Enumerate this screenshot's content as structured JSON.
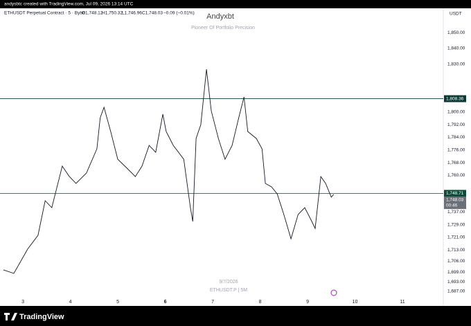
{
  "header": {
    "text": "andysbtc created with TradingView.com, Jul 09, 2026 13:14 UTC"
  },
  "footer": {
    "brand": "TradingView"
  },
  "chart_data": {
    "type": "line",
    "title": "Andyxbt",
    "subtitle": "Pioneer Of Portfolio Precision",
    "symbol": "ETHUSDT Perpetual Contract · 5 · Bybit",
    "ohlc": {
      "values": [
        1748.12,
        1750.32,
        1746.96,
        1748.03
      ],
      "value_labels": [
        "O1,748.12",
        "H1,750.32",
        "L1,746.96",
        "C1,748.03"
      ]
    },
    "change": "−0.09 (−0.01%)",
    "watermark_date": "9/7/2026",
    "watermark_symbol": "ETHUSDT.P | 5M",
    "currency": "USDT",
    "color": "#131722",
    "grid": false,
    "x": [
      2.59,
      2.81,
      3.1,
      3.32,
      3.47,
      3.61,
      3.83,
      3.98,
      4.12,
      4.34,
      4.56,
      4.63,
      4.71,
      4.85,
      5.0,
      5.15,
      5.37,
      5.51,
      5.66,
      5.8,
      5.95,
      6.02,
      6.17,
      6.39,
      6.53,
      6.58,
      6.65,
      6.75,
      6.87,
      6.97,
      7.12,
      7.26,
      7.41,
      7.55,
      7.66,
      7.74,
      7.92,
      8.04,
      8.11,
      8.24,
      8.36,
      8.5,
      8.65,
      8.8,
      8.94,
      9.09,
      9.16,
      9.28,
      9.38,
      9.5,
      9.55
    ],
    "values": [
      1700.5,
      1698.3,
      1713.6,
      1722.3,
      1744.1,
      1739.7,
      1765.9,
      1759.3,
      1755.0,
      1761.5,
      1776.8,
      1796.4,
      1802.9,
      1787.7,
      1770.2,
      1765.9,
      1759.3,
      1765.9,
      1778.9,
      1774.6,
      1798.6,
      1787.7,
      1778.9,
      1770.2,
      1739.7,
      1731.0,
      1783.3,
      1792.0,
      1826.9,
      1800.7,
      1783.3,
      1770.2,
      1778.9,
      1796.4,
      1809.5,
      1787.7,
      1783.3,
      1776.8,
      1755.0,
      1752.8,
      1748.4,
      1735.4,
      1720.1,
      1735.4,
      1739.7,
      1731.0,
      1726.6,
      1759.3,
      1755.0,
      1746.3,
      1748.03
    ],
    "xlim": [
      2.518,
      11.86
    ],
    "xticks": [
      3,
      4,
      5,
      6,
      7,
      8,
      9,
      10,
      11
    ],
    "ylim": [
      1677.8,
      1865.3
    ],
    "yticks": [
      {
        "value": 1850,
        "label": "1,850.00"
      },
      {
        "value": 1840,
        "label": "1,840.00"
      },
      {
        "value": 1830,
        "label": "1,830.00"
      },
      {
        "value": 1800,
        "label": "1,800.00"
      },
      {
        "value": 1792,
        "label": "1,792.00"
      },
      {
        "value": 1784,
        "label": "1,784.00"
      },
      {
        "value": 1776,
        "label": "1,776.00"
      },
      {
        "value": 1768,
        "label": "1,768.00"
      },
      {
        "value": 1760,
        "label": "1,760.00"
      },
      {
        "value": 1737,
        "label": "1,737.00"
      },
      {
        "value": 1729,
        "label": "1,729.00"
      },
      {
        "value": 1721,
        "label": "1,721.00"
      },
      {
        "value": 1713,
        "label": "1,713.00"
      },
      {
        "value": 1706,
        "label": "1,706.00"
      },
      {
        "value": 1699,
        "label": "1,699.00"
      },
      {
        "value": 1693,
        "label": "1,693.00"
      },
      {
        "value": 1687,
        "label": "1,687.00"
      }
    ],
    "hlines": [
      {
        "value": 1808.36,
        "label": "1,808.36",
        "color": "#0b3b34"
      },
      {
        "value": 1748.71,
        "label": "1,748.71",
        "color": "#0e4a3a"
      }
    ],
    "last_price": {
      "value": 1748.03,
      "label": "1,748.03",
      "countdown": "00:46"
    }
  }
}
